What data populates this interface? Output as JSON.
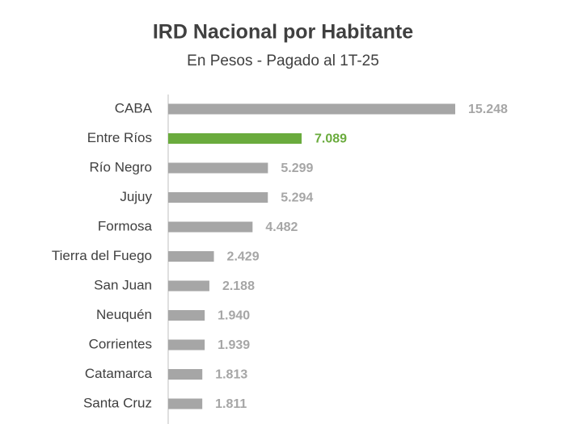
{
  "chart_data": {
    "type": "hbar",
    "title": "IRD Nacional por Habitante",
    "subtitle": "En Pesos - Pagado al 1T-25",
    "categories": [
      "CABA",
      "Entre Ríos",
      "Río Negro",
      "Jujuy",
      "Formosa",
      "Tierra del Fuego",
      "San Juan",
      "Neuquén",
      "Corrientes",
      "Catamarca",
      "Santa Cruz"
    ],
    "values": [
      15248,
      7089,
      5299,
      5294,
      4482,
      2429,
      2188,
      1940,
      1939,
      1813,
      1811
    ],
    "value_labels": [
      "15.248",
      "7.089",
      "5.299",
      "5.294",
      "4.482",
      "2.429",
      "2.188",
      "1.940",
      "1.939",
      "1.813",
      "1.811"
    ],
    "colors": [
      "#a6a6a6",
      "#6aab3d",
      "#a6a6a6",
      "#a6a6a6",
      "#a6a6a6",
      "#a6a6a6",
      "#a6a6a6",
      "#a6a6a6",
      "#a6a6a6",
      "#a6a6a6",
      "#a6a6a6"
    ]
  }
}
